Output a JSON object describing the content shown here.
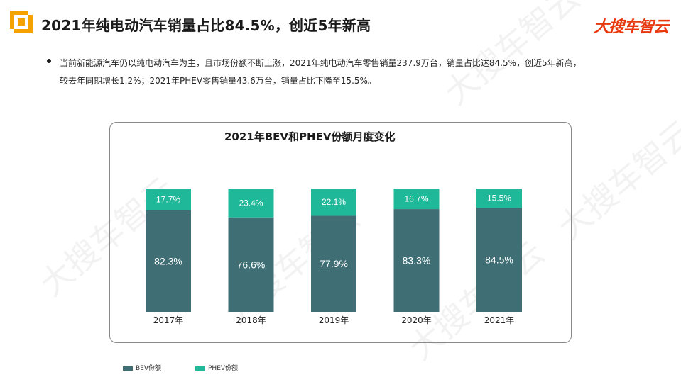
{
  "header": {
    "title": "2021年纯电动汽车销量占比84.5%，创近5年新高",
    "brand": "大搜车智云"
  },
  "bullet": {
    "line1": "当前新能源汽车仍以纯电动汽车为主，且市场份额不断上涨，2021年纯电动汽车零售销量237.9万台，销量占比达84.5%，创近5年新高，",
    "line2": "较去年同期增长1.2%；2021年PHEV零售销量43.6万台，销量占比下降至15.5%。"
  },
  "watermark": "大搜车智云",
  "colors": {
    "bev": "#3f6f75",
    "phev": "#1fb99a",
    "brand": "#e8380d"
  },
  "chart_data": {
    "type": "bar",
    "stacked": true,
    "title": "2021年BEV和PHEV份额月度变化",
    "categories": [
      "2017年",
      "2018年",
      "2019年",
      "2020年",
      "2021年"
    ],
    "series": [
      {
        "name": "BEV份额",
        "values": [
          82.3,
          76.6,
          77.9,
          83.3,
          84.5
        ],
        "labels": [
          "82.3%",
          "76.6%",
          "77.9%",
          "83.3%",
          "84.5%"
        ]
      },
      {
        "name": "PHEV份额",
        "values": [
          17.7,
          23.4,
          22.1,
          16.7,
          15.5
        ],
        "labels": [
          "17.7%",
          "23.4%",
          "22.1%",
          "16.7%",
          "15.5%"
        ]
      }
    ],
    "ylim": [
      0,
      100
    ],
    "grid": false,
    "legend": "bottom-left"
  }
}
